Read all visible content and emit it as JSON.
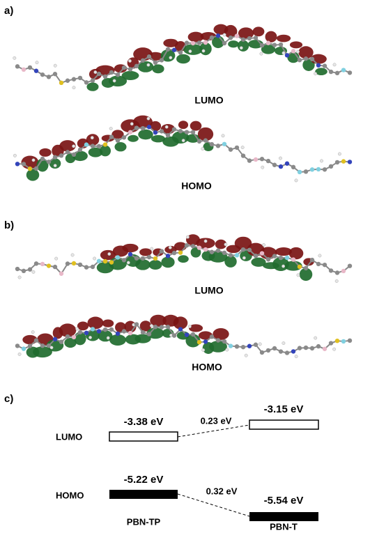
{
  "panels": [
    {
      "label": "a)",
      "lumo": "LUMO",
      "homo": "HOMO"
    },
    {
      "label": "b)",
      "lumo": "LUMO",
      "homo": "HOMO"
    }
  ],
  "energy_diagram": {
    "label": "c)",
    "rows": [
      "LUMO",
      "HOMO"
    ],
    "molecules": [
      "PBN-TP",
      "PBN-T"
    ],
    "levels": {
      "PBN-TP": {
        "lumo": "-3.38 eV",
        "homo": "-5.22 eV"
      },
      "PBN-T": {
        "lumo": "-3.15 eV",
        "homo": "-5.54 eV"
      }
    },
    "differences": {
      "lumo": "0.23 eV",
      "homo": "0.32 eV"
    }
  }
}
